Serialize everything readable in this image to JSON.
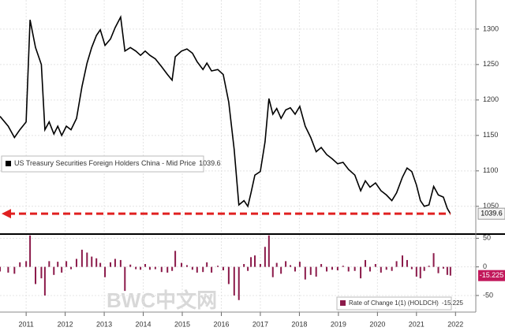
{
  "watermark": "BWC中文网",
  "chart_data": [
    {
      "type": "line",
      "x": [
        2010.33,
        2010.54,
        2010.7,
        2010.84,
        2011.0,
        2011.1,
        2011.24,
        2011.39,
        2011.48,
        2011.59,
        2011.71,
        2011.81,
        2011.91,
        2012.03,
        2012.15,
        2012.29,
        2012.43,
        2012.56,
        2012.68,
        2012.8,
        2012.9,
        2013.02,
        2013.16,
        2013.28,
        2013.42,
        2013.53,
        2013.67,
        2013.81,
        2013.93,
        2014.05,
        2014.17,
        2014.31,
        2014.47,
        2014.62,
        2014.74,
        2014.82,
        2014.98,
        2015.12,
        2015.26,
        2015.38,
        2015.53,
        2015.63,
        2015.75,
        2015.91,
        2016.05,
        2016.19,
        2016.33,
        2016.45,
        2016.58,
        2016.68,
        2016.76,
        2016.86,
        2017.0,
        2017.12,
        2017.22,
        2017.32,
        2017.42,
        2017.53,
        2017.65,
        2017.77,
        2017.89,
        2018.01,
        2018.15,
        2018.29,
        2018.43,
        2018.56,
        2018.7,
        2018.84,
        2018.98,
        2019.12,
        2019.26,
        2019.42,
        2019.57,
        2019.69,
        2019.81,
        2019.95,
        2020.09,
        2020.23,
        2020.37,
        2020.49,
        2020.64,
        2020.76,
        2020.88,
        2021.0,
        2021.1,
        2021.2,
        2021.32,
        2021.44,
        2021.56,
        2021.69,
        2021.79,
        2021.87
      ],
      "series": [
        {
          "name": "US Treasury Securities Foreign Holders China - Mid Price",
          "color": "#000000",
          "values": [
            1177,
            1163,
            1147,
            1158,
            1169,
            1313,
            1274,
            1250,
            1158,
            1169,
            1152,
            1163,
            1150,
            1163,
            1158,
            1174,
            1219,
            1252,
            1274,
            1291,
            1299,
            1277,
            1286,
            1302,
            1317,
            1269,
            1274,
            1269,
            1263,
            1269,
            1263,
            1258,
            1247,
            1236,
            1228,
            1261,
            1269,
            1272,
            1266,
            1254,
            1243,
            1252,
            1241,
            1243,
            1236,
            1197,
            1130,
            1052,
            1058,
            1050,
            1069,
            1094,
            1099,
            1141,
            1202,
            1180,
            1188,
            1174,
            1186,
            1189,
            1180,
            1191,
            1163,
            1147,
            1127,
            1133,
            1123,
            1117,
            1110,
            1112,
            1102,
            1094,
            1072,
            1086,
            1077,
            1083,
            1072,
            1066,
            1058,
            1069,
            1091,
            1104,
            1099,
            1080,
            1058,
            1050,
            1052,
            1078,
            1066,
            1063,
            1047,
            1039.6
          ]
        }
      ],
      "xlim": [
        2010.33,
        2022.52
      ],
      "ylim": [
        1012,
        1341
      ],
      "yticks": [
        1050,
        1100,
        1150,
        1200,
        1250,
        1300
      ],
      "grid": true,
      "arrow_color": "#e02020"
    },
    {
      "type": "bar",
      "x": [
        2010.33,
        2010.54,
        2010.7,
        2010.84,
        2011.0,
        2011.1,
        2011.24,
        2011.39,
        2011.48,
        2011.59,
        2011.71,
        2011.81,
        2011.91,
        2012.03,
        2012.15,
        2012.29,
        2012.43,
        2012.56,
        2012.68,
        2012.8,
        2012.9,
        2013.02,
        2013.16,
        2013.28,
        2013.42,
        2013.53,
        2013.67,
        2013.81,
        2013.93,
        2014.05,
        2014.17,
        2014.31,
        2014.47,
        2014.62,
        2014.74,
        2014.82,
        2014.98,
        2015.12,
        2015.26,
        2015.38,
        2015.53,
        2015.63,
        2015.75,
        2015.91,
        2016.05,
        2016.19,
        2016.33,
        2016.45,
        2016.58,
        2016.68,
        2016.76,
        2016.86,
        2017.0,
        2017.12,
        2017.22,
        2017.32,
        2017.42,
        2017.53,
        2017.65,
        2017.77,
        2017.89,
        2018.01,
        2018.15,
        2018.29,
        2018.43,
        2018.56,
        2018.7,
        2018.84,
        2018.98,
        2019.12,
        2019.26,
        2019.42,
        2019.57,
        2019.69,
        2019.81,
        2019.95,
        2020.09,
        2020.23,
        2020.37,
        2020.49,
        2020.64,
        2020.76,
        2020.88,
        2021.0,
        2021.1,
        2021.2,
        2021.32,
        2021.44,
        2021.56,
        2021.69,
        2021.79,
        2021.87
      ],
      "series": [
        {
          "name": "Rate of Change 1(1) (HOLDCH)",
          "color": "#8b1a4a",
          "values": [
            -8,
            -10,
            -12,
            8,
            10,
            55,
            -30,
            -20,
            -50,
            10,
            -14,
            9,
            -10,
            10,
            -4,
            14,
            30,
            25,
            18,
            15,
            7,
            -18,
            8,
            14,
            12,
            -42,
            4,
            -4,
            -5,
            5,
            -5,
            -4,
            -9,
            -10,
            -7,
            28,
            7,
            3,
            -5,
            -10,
            -9,
            8,
            -10,
            2,
            -6,
            -30,
            -50,
            -58,
            5,
            -7,
            17,
            20,
            5,
            35,
            55,
            -18,
            7,
            -12,
            10,
            3,
            -8,
            9,
            -22,
            -14,
            -17,
            5,
            -8,
            -5,
            -6,
            2,
            -8,
            -7,
            -20,
            12,
            -8,
            5,
            -10,
            -5,
            -7,
            10,
            20,
            12,
            -4,
            -17,
            -20,
            -7,
            2,
            24,
            -11,
            -3,
            -14,
            -15.225
          ]
        }
      ],
      "xlim": [
        2010.33,
        2022.52
      ],
      "ylim": [
        -79,
        56
      ],
      "yticks": [
        50,
        0,
        -50
      ],
      "xticks": [
        2011,
        2012,
        2013,
        2014,
        2015,
        2016,
        2017,
        2018,
        2019,
        2020,
        2021,
        2022
      ],
      "grid": true
    }
  ]
}
